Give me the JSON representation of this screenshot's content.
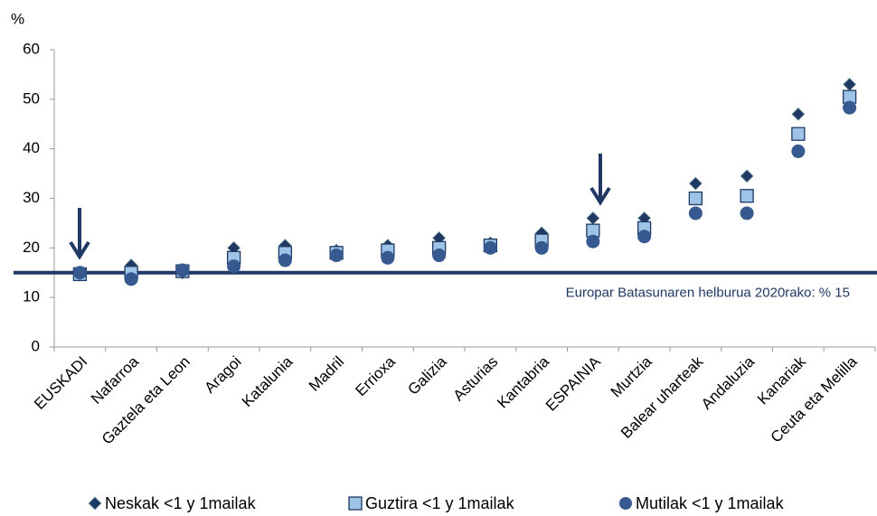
{
  "chart_data": {
    "type": "scatter",
    "y_unit": "%",
    "categories": [
      "EUSKADI",
      "Nafarroa",
      "Gaztela eta Leon",
      "Aragoi",
      "Katalunia",
      "Madril",
      "Errioxa",
      "Galizia",
      "Asturias",
      "Kantabria",
      "ESPAINIA",
      "Murtzia",
      "Balear uharteak",
      "Andaluzia",
      "Kanariak",
      "Ceuta eta Melilla"
    ],
    "series": [
      {
        "name": "Neskak <1 y 1mailak",
        "marker": "diamond",
        "color": "#1f3864",
        "values": [
          14.5,
          16.5,
          15,
          20,
          20.5,
          19.5,
          20.5,
          22,
          21,
          23,
          26,
          26,
          33,
          34.5,
          47,
          53
        ]
      },
      {
        "name": "Guztira <1 y 1mailak",
        "marker": "square",
        "color": "#9dc3e6",
        "values": [
          14.7,
          15,
          15.3,
          18,
          19,
          19,
          19.5,
          20,
          20.5,
          21.5,
          23.5,
          24,
          30,
          30.5,
          43,
          50.5
        ]
      },
      {
        "name": "Mutilak <1 y 1mailak",
        "marker": "circle",
        "color": "#36598f",
        "values": [
          15,
          13.7,
          15.5,
          16.3,
          17.5,
          18.5,
          18,
          18.5,
          20,
          20,
          21.3,
          22.3,
          27,
          27,
          39.5,
          48.3
        ]
      }
    ],
    "target": {
      "value": 15,
      "label": "Europar Batasunaren helburua 2020rako: % 15",
      "color": "#1f3864"
    },
    "ylim": [
      0,
      60
    ],
    "yticks": [
      0,
      10,
      20,
      30,
      40,
      50,
      60
    ],
    "grid": false
  }
}
